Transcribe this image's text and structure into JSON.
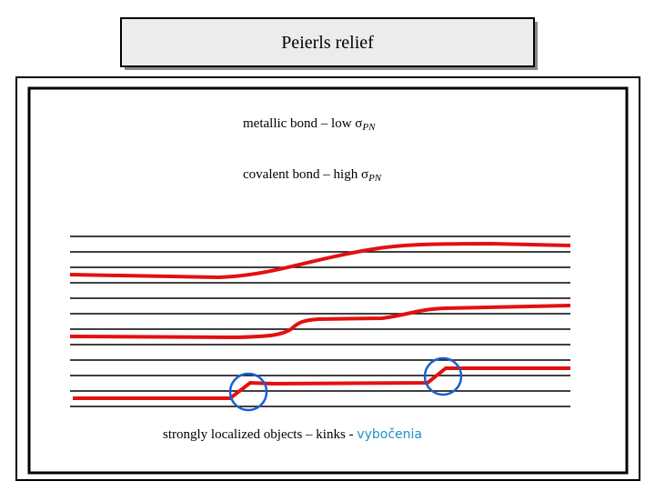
{
  "title": "Peierls relief",
  "notes": [
    {
      "text": "metallic bond – low σ",
      "subscript": "PN"
    },
    {
      "text": "covalent bond – high σ",
      "subscript": "PN"
    }
  ],
  "caption": {
    "text": "strongly localized objects – kinks - ",
    "highlight": "vybočenia"
  }
}
